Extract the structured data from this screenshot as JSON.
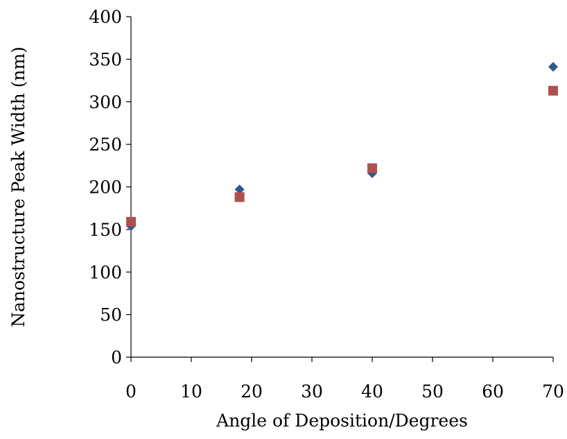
{
  "chart_data": {
    "type": "scatter",
    "title": "",
    "xlabel": "Angle of Deposition/Degrees",
    "ylabel": "Nanostructure Peak Width (nm)",
    "xlim": [
      0,
      70
    ],
    "ylim": [
      0,
      400
    ],
    "xticks": [
      "0",
      "10",
      "20",
      "30",
      "40",
      "50",
      "60",
      "70"
    ],
    "yticks": [
      "0",
      "50",
      "100",
      "150",
      "200",
      "250",
      "300",
      "350",
      "400"
    ],
    "grid": false,
    "legend": "none",
    "series": [
      {
        "marker": "diamond",
        "color": "#2E5A8A",
        "points": [
          [
            0,
            154
          ],
          [
            18,
            197
          ],
          [
            40,
            216
          ],
          [
            70,
            341
          ]
        ]
      },
      {
        "marker": "square",
        "color": "#B0504C",
        "points": [
          [
            0,
            159
          ],
          [
            18,
            188
          ],
          [
            40,
            222
          ],
          [
            70,
            313
          ]
        ]
      }
    ]
  }
}
